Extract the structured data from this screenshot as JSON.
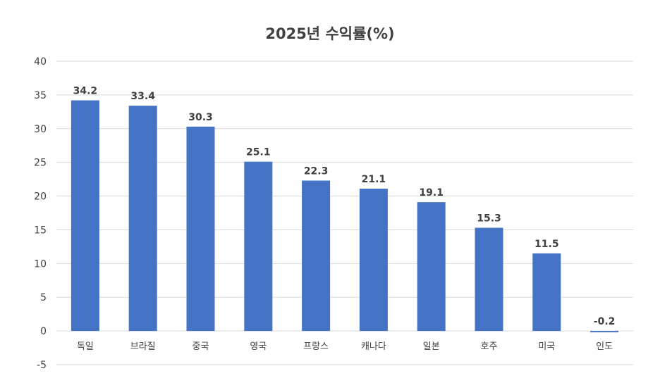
{
  "chart_data": {
    "type": "bar",
    "title": "2025년 수익률(%)",
    "categories": [
      "독일",
      "브라질",
      "중국",
      "영국",
      "프랑스",
      "캐나다",
      "일본",
      "호주",
      "미국",
      "인도"
    ],
    "values": [
      34.2,
      33.4,
      30.3,
      25.1,
      22.3,
      21.1,
      19.1,
      15.3,
      11.5,
      -0.2
    ],
    "data_labels": [
      "34.2",
      "33.4",
      "30.3",
      "25.1",
      "22.3",
      "21.1",
      "19.1",
      "15.3",
      "11.5",
      "-0.2"
    ],
    "ylim": [
      -5,
      40
    ],
    "yticks": [
      40,
      35,
      30,
      25,
      20,
      15,
      10,
      5,
      0,
      -5
    ],
    "xlabel": "",
    "ylabel": "",
    "grid": true,
    "legend": "none",
    "colors": {
      "bar": "#4472C4",
      "grid": "#D9D9D9",
      "text": "#404040"
    }
  }
}
